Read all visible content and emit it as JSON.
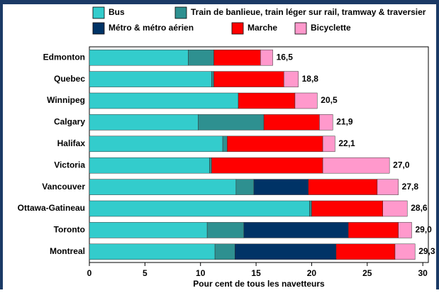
{
  "chart_data": {
    "type": "stacked_barh",
    "categories": [
      "Edmonton",
      "Quebec",
      "Winnipeg",
      "Calgary",
      "Halifax",
      "Victoria",
      "Vancouver",
      "Ottawa-Gatineau",
      "Toronto",
      "Montreal"
    ],
    "series": [
      {
        "name": "Bus",
        "color": "#33cccc",
        "values": [
          8.9,
          11.0,
          13.4,
          9.8,
          12.0,
          10.8,
          13.2,
          19.8,
          10.6,
          11.3
        ]
      },
      {
        "name": "Train de banlieue, train léger sur rail, tramway & traversier",
        "color": "#2e9090",
        "values": [
          2.3,
          0.2,
          0,
          5.9,
          0.4,
          0.2,
          1.6,
          0.2,
          3.3,
          1.8
        ]
      },
      {
        "name": "Métro & métro aérien",
        "color": "#003366",
        "values": [
          0,
          0,
          0,
          0,
          0,
          0,
          4.9,
          0,
          9.4,
          9.1
        ]
      },
      {
        "name": "Marche",
        "color": "#ff0000",
        "values": [
          4.2,
          6.3,
          5.1,
          5.0,
          8.6,
          10.0,
          6.2,
          6.4,
          4.5,
          5.3
        ]
      },
      {
        "name": "Bicyclette",
        "color": "#ff99cc",
        "values": [
          1.1,
          1.3,
          2.0,
          1.2,
          1.1,
          6.0,
          1.9,
          2.2,
          1.2,
          1.8
        ]
      }
    ],
    "total_labels": [
      "16,5",
      "18,8",
      "20,5",
      "21,9",
      "22,1",
      "27,0",
      "27,8",
      "28,6",
      "29,0",
      "29,3"
    ],
    "xlabel": "Pour cent de tous les navetteurs",
    "xlim": [
      0,
      30.5
    ],
    "xticks": [
      0,
      5,
      10,
      15,
      20,
      25,
      30
    ],
    "grid": false
  }
}
